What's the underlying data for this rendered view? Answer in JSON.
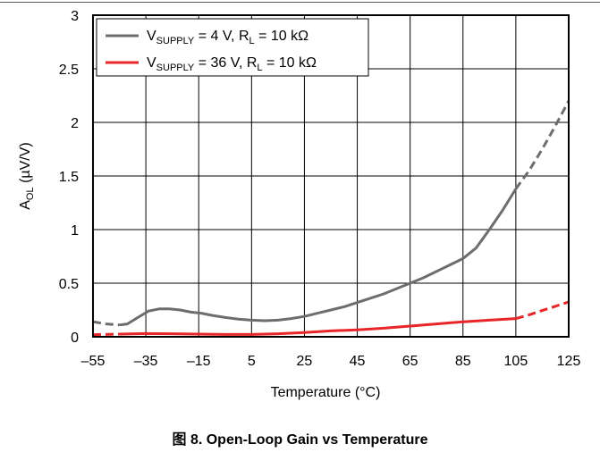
{
  "chart_data": {
    "type": "line",
    "caption": "图 8. Open-Loop Gain vs Temperature",
    "xlabel": "Temperature (°C)",
    "ylabel": {
      "main": "A",
      "sub": "OL",
      "rest": " (µV/V)"
    },
    "xlim": [
      -55,
      125
    ],
    "ylim": [
      0,
      3
    ],
    "x_ticks": [
      "–55",
      "–35",
      "–15",
      "5",
      "25",
      "45",
      "65",
      "85",
      "105",
      "125"
    ],
    "x_tick_values": [
      -55,
      -35,
      -15,
      5,
      25,
      45,
      65,
      85,
      105,
      125
    ],
    "y_ticks": [
      "0",
      "0.5",
      "1",
      "1.5",
      "2",
      "2.5",
      "3"
    ],
    "y_tick_values": [
      0,
      0.5,
      1,
      1.5,
      2,
      2.5,
      3
    ],
    "grid": true,
    "legend_position": "top-left",
    "series": [
      {
        "legend": {
          "a": "V",
          "a_sub": "SUPPLY",
          "b": " = 4 V, R",
          "b_sub": "L",
          "c": " = 10 kΩ"
        },
        "color": "#6d6d6d",
        "dashed_before_x": -45,
        "dashed_after_x": 105,
        "x": [
          -55,
          -50,
          -45,
          -42,
          -38,
          -34,
          -30,
          -26,
          -22,
          -18,
          -14,
          -10,
          -5,
          0,
          5,
          10,
          15,
          20,
          25,
          30,
          35,
          40,
          45,
          50,
          55,
          60,
          65,
          70,
          75,
          80,
          85,
          90,
          95,
          100,
          105,
          110,
          115,
          120,
          125
        ],
        "y": [
          0.14,
          0.12,
          0.11,
          0.12,
          0.18,
          0.24,
          0.26,
          0.26,
          0.25,
          0.23,
          0.22,
          0.2,
          0.18,
          0.165,
          0.155,
          0.15,
          0.155,
          0.17,
          0.19,
          0.22,
          0.25,
          0.28,
          0.32,
          0.36,
          0.4,
          0.45,
          0.5,
          0.55,
          0.61,
          0.67,
          0.73,
          0.83,
          1.0,
          1.18,
          1.38,
          1.55,
          1.75,
          1.97,
          2.2
        ]
      },
      {
        "legend": {
          "a": "V",
          "a_sub": "SUPPLY",
          "b": " = 36 V, R",
          "b_sub": "L",
          "c": " = 10 kΩ"
        },
        "color": "#e8262a",
        "dashed_before_x": -45,
        "dashed_after_x": 105,
        "x": [
          -55,
          -45,
          -35,
          -25,
          -15,
          -5,
          5,
          15,
          25,
          35,
          45,
          55,
          65,
          75,
          85,
          95,
          105,
          110,
          115,
          120,
          125
        ],
        "y": [
          0.02,
          0.025,
          0.03,
          0.028,
          0.025,
          0.022,
          0.022,
          0.028,
          0.04,
          0.055,
          0.065,
          0.08,
          0.1,
          0.12,
          0.14,
          0.155,
          0.17,
          0.205,
          0.245,
          0.285,
          0.325
        ]
      }
    ]
  }
}
